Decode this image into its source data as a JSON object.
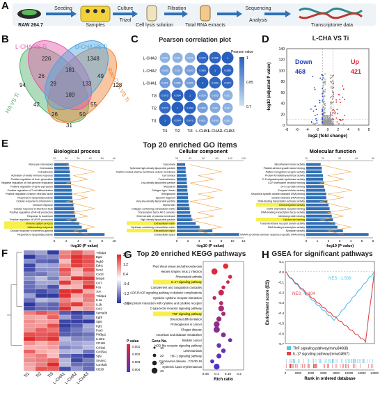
{
  "panel_letters": [
    "A",
    "B",
    "C",
    "D",
    "E",
    "F",
    "G",
    "H"
  ],
  "panelA": {
    "steps": [
      "RAW 264.7",
      "Seeding",
      "Samples",
      "Culture",
      "Trizol",
      "Cell lysis solution",
      "Filtration",
      "Total RNA extracts",
      "Sequencing",
      "Analysis",
      "Transcriptome data"
    ]
  },
  "panelB": {
    "set_labels": [
      "L-CHA VS Ti",
      "D-CHA VS Ti",
      "HA VS Ti",
      "Rac-CHA VS Ti"
    ],
    "colors": [
      "#e05aa8",
      "#4aa3df",
      "#4fb06a",
      "#f08030"
    ],
    "region_counts": [
      "226",
      "1348",
      "94",
      "128",
      "181",
      "26",
      "29",
      "133",
      "49",
      "189",
      "42",
      "55",
      "26",
      "50",
      "31"
    ]
  },
  "panelC": {
    "title": "Pearson correlation plot",
    "rows": [
      "L-CHA3",
      "L-CHA2",
      "L-CHA1",
      "Ti3",
      "Ti2",
      "Ti1"
    ],
    "cols": [
      "Ti1",
      "Ti2",
      "Ti3",
      "L-CHA1",
      "L-CHA2",
      "L-CHA3"
    ],
    "legend_title": "Pearson value",
    "legend_ticks": [
      "1",
      "0.85",
      "0.7"
    ],
    "matrix": [
      [
        0.811,
        0.811,
        0.811,
        0.979,
        0.986,
        1
      ],
      [
        0.836,
        0.83,
        0.855,
        0.983,
        1,
        0.986
      ],
      [
        0.861,
        0.855,
        0.859,
        1,
        0.983,
        0.979
      ],
      [
        0.973,
        0.994,
        1,
        0.859,
        0.855,
        0.811
      ],
      [
        0.974,
        1,
        0.994,
        0.855,
        0.83,
        0.811
      ],
      [
        1,
        0.974,
        0.973,
        0.861,
        0.836,
        0.811
      ]
    ]
  },
  "panelD": {
    "title": "L-CHA VS Ti",
    "down_label": "Down",
    "down_count": "468",
    "up_label": "Up",
    "up_count": "421",
    "xlabel": "log2 (fold change)",
    "ylabel": "-log10 (adjusted P value)",
    "xticks": [
      "-8",
      "-6",
      "-4",
      "-2",
      "0",
      "2",
      "4",
      "6",
      "8"
    ],
    "yticks": [
      "0",
      "20",
      "40",
      "60",
      "80",
      "100",
      "120",
      "140"
    ],
    "colors": {
      "down": "#1f3fbf",
      "up": "#e0202e",
      "ns": "#999999"
    }
  },
  "panelE": {
    "title": "Top 20 enriched GO items",
    "bp": {
      "title": "Biological process",
      "xlabel": "-log10 (P value)",
      "axis_ticks": [
        "0",
        "2",
        "4",
        "6",
        "8",
        "10"
      ],
      "top_ticks": [
        "10",
        "20",
        "30",
        "40",
        "50",
        "60"
      ],
      "terms": [
        "Monocyte chemotaxis",
        "Chemotaxis",
        "Cell adhesion",
        "Activation of innate immune response",
        "Positive regulation of fever generation",
        "Negative regulation of viral genome replication",
        "Positive regulation of gene expression",
        "Positive regulation of T cell differentiation",
        "Positive regulation of tumor necrosis factor",
        "Response to lipopolysaccharide",
        "Cellular response to interleukin-1",
        "Immune response",
        "Cellular response to interferon-beta",
        "Positive regulation of NF-kB production",
        "Response to bacterium",
        "Positive regulation of VEGF production",
        "Immune system process",
        "Inflammatory response",
        "Cellular response to interferon-gamma",
        "Response to lipopolysaccharide"
      ],
      "values": [
        2.4,
        2.5,
        2.6,
        2.6,
        2.7,
        2.8,
        2.8,
        2.9,
        3.0,
        3.0,
        3.1,
        3.2,
        3.3,
        3.4,
        3.5,
        3.7,
        4.2,
        4.6,
        5.5,
        8.4
      ],
      "highlight": [
        16,
        17
      ]
    },
    "cc": {
      "title": "Cellular component",
      "xlabel": "-log10 (P value)",
      "axis_ticks": [
        "0",
        "2",
        "4",
        "6",
        "8",
        "10",
        "12"
      ],
      "top_ticks": [
        "20",
        "40",
        "60",
        "80",
        "100",
        "120"
      ],
      "terms": [
        "Sarcomere",
        "Spherical high-density lipoprotein particle",
        "Clathrin-coated plasma membrane vesicle membrane",
        "Cell surface",
        "Focal adhesion",
        "Low-density lipoprotein particle",
        "Mesoderm",
        "Collagen type I trimer",
        "Omegasome",
        "Spectrin fragment",
        "Very-low-density lipoprotein particle",
        "Stress fiber",
        "Collagen-containing extracellular matrix",
        "Transcription factor AP-1 complex",
        "External side of plasma membrane",
        "High-density lipoprotein particle",
        "Extracellular matrix",
        "Synthase-containing extracellular matrix",
        "Extracellular region",
        "Extracellular space"
      ],
      "values": [
        1.5,
        1.6,
        1.6,
        1.7,
        1.8,
        1.8,
        1.9,
        1.9,
        2.0,
        2.0,
        2.1,
        2.2,
        2.3,
        2.4,
        2.6,
        2.8,
        3.4,
        4.1,
        6.4,
        11.2
      ],
      "highlight": [
        16,
        18
      ]
    },
    "mf": {
      "title": "Molecular function",
      "xlabel": "-log10 (P value)",
      "axis_ticks": [
        "0",
        "1",
        "2",
        "3",
        "4",
        "5",
        "6"
      ],
      "top_ticks": [
        "10",
        "20",
        "30",
        "40",
        "50"
      ],
      "terms": [
        "Microfilament motor activity",
        "Platelet-derived growth factor binding",
        "Pattern recognition receptor activity",
        "Protein-formaldehyde/ribose activity",
        "2'-5'-oligoadenylate synthetase activity",
        "CCR chemokine receptor binding",
        "14-3-3 protein binding",
        "Enzyme inhibitor activity",
        "Sequence-specific double-stranded DNA binding",
        "Double-stranded DNA binding",
        "DNA-binding transcription activator activity",
        "Chemorepellent activity",
        "CCR1 chemokine receptor binding",
        "DNA-binding transcription factor activity",
        "Identical protein binding",
        "Calcium ion binding",
        "Transmembrane receptor protein activity",
        "DNA-binding transcription activity",
        "Sympoter activity",
        "RNAPII proximal promoter sequence-specific DNA binding"
      ],
      "values": [
        1.3,
        1.4,
        1.4,
        1.5,
        1.5,
        1.6,
        1.6,
        1.7,
        1.8,
        1.8,
        1.9,
        2.0,
        2.1,
        2.2,
        2.3,
        2.4,
        2.6,
        2.8,
        3.3,
        5.6
      ],
      "highlight": [
        11,
        15
      ]
    }
  },
  "panelF": {
    "genes": [
      "Tnfaip3",
      "Bgal",
      "Ikgb3",
      "Edn1",
      "Nos2",
      "Cxcl2",
      "Mmp9",
      "Ccl7",
      "Fos",
      "Jun",
      "Tnfaip1",
      "IL1a",
      "IL1b",
      "Ccl2",
      "Sema3b",
      "Egf8",
      "Spi6",
      "Fgf2",
      "Fos3",
      "Pik3ip1",
      "IL10ra",
      "CD181",
      "Col1a1",
      "Col15a1",
      "Sp9",
      "Smarcc",
      "Cxmk2b",
      "CD28"
    ],
    "samples": [
      "Ti1",
      "Ti2",
      "Ti3",
      "L-CHA1",
      "L-CHA2",
      "L-CHA3"
    ],
    "scale_ticks": [
      "2.0",
      "1.2",
      "0.4",
      "-0.4",
      "-1.2",
      "-2.0"
    ]
  },
  "panelG": {
    "title": "Top 20 enriched KEGG pathways",
    "xlabel": "Rich ratio",
    "xticks": [
      "0.05",
      "0.1",
      "0.15",
      "0.2"
    ],
    "pvalue_title": "P value",
    "pvalue_ticks": [
      "0.001",
      "0.002",
      "0.003",
      "0.004"
    ],
    "gene_title": "Gene No.",
    "gene_ticks": [
      "10",
      "20",
      "30",
      "40"
    ],
    "pathways": [
      "Fluid shear stress and atherosclerosis",
      "Herpes simplex virus 1 infection",
      "Rheumatoid arthritis",
      "IL-17 signaling pathway",
      "Complement and coagulation cascades",
      "AGE-RAGE signaling pathway in diabetic complications",
      "Cytokine-cytokine receptor interaction",
      "Viral protein interaction with cytokine and cytokine receptor",
      "C-type lectin receptor signaling pathway",
      "TNF signaling pathway",
      "Osteoclast differentiation",
      "Proteoglycans in cancer",
      "Chagas disease",
      "Ascorbate and aldarate metabolism",
      "Bladder cancer",
      "NOD-like receptor signaling pathway",
      "Leishmaniasis",
      "HIF-1 signaling pathway",
      "Coronavirus disease - COVID-19",
      "Systemic lupus erythematosus"
    ],
    "rich_ratio": [
      0.14,
      0.09,
      0.16,
      0.15,
      0.13,
      0.12,
      0.09,
      0.12,
      0.12,
      0.13,
      0.11,
      0.1,
      0.1,
      0.13,
      0.16,
      0.11,
      0.13,
      0.11,
      0.08,
      0.1
    ],
    "highlight": [
      3,
      9
    ]
  },
  "panelH": {
    "title": "GSEA for significant pathways",
    "ylabel": "Enrichment score (ES)",
    "xlabel": "Rank in ordered database",
    "xticks": [
      "0",
      "2000",
      "4000",
      "6000",
      "8000",
      "10000",
      "12000",
      "14000"
    ],
    "yticks": [
      "0.1",
      "0.0",
      "-0.1",
      "-0.2",
      "-0.3",
      "-0.4",
      "-0.5",
      "-0.6",
      "-0.7"
    ],
    "nes1": "NES: -1.508",
    "nes2": "NES: -2.104",
    "legend": [
      "TNF signaling pathway(mmu04668)",
      "IL-17 signaling pathway(mmu04657)"
    ],
    "colors": [
      "#4fc3e8",
      "#e0454a"
    ]
  }
}
